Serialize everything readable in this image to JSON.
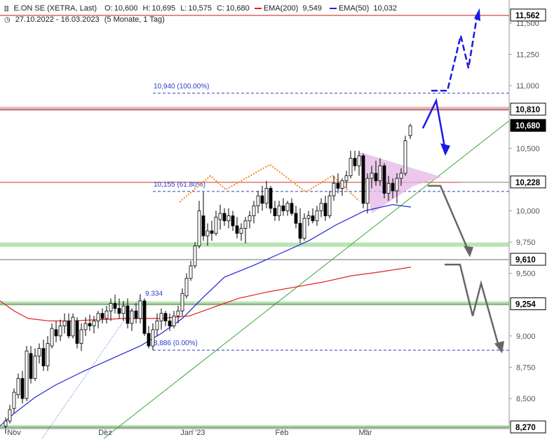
{
  "header": {
    "chart_icon": "bar-chart-icon",
    "symbol": "E.ON SE (XETRA, Last)",
    "open_label": "O:",
    "open": "10,600",
    "high_label": "H:",
    "high": "10,695",
    "low_label": "L:",
    "low": "10,575",
    "close_label": "C:",
    "close": "10,680",
    "ema200_label": "EMA(200)",
    "ema200_value": "9,549",
    "ema50_label": "EMA(50)",
    "ema50_value": "10,032",
    "clock_icon": "clock-icon",
    "date_range": "27.10.2022 - 16.03.2023",
    "period": "(5 Monate, 1 Tag)"
  },
  "colors": {
    "ema200": "#e0201c",
    "ema50": "#2323d6",
    "trendline": "#3aa63a",
    "support_band": "#b9e4b3",
    "resistance_band": "#f5b8b8",
    "fib_text": "#2a3cc9",
    "orange": "#f08a1c",
    "triangle_fill": "#e3b7e3",
    "arrow_blue": "#1a1ae6",
    "arrow_gray": "#666666"
  },
  "chart_data": {
    "type": "candlestick",
    "ylim": [
      8.2,
      11.74
    ],
    "x_tick_labels": [
      "Nov",
      "Dez",
      "Jan '23",
      "Feb",
      "Mär"
    ],
    "y_tick_labels": [
      "11,500",
      "11,250",
      "11,000",
      "10,500",
      "10,000",
      "9,750",
      "9,500",
      "9,000",
      "8,750",
      "8,500"
    ],
    "y_ticks": [
      11.5,
      11.25,
      11.0,
      10.5,
      10.0,
      9.75,
      9.5,
      9.0,
      8.75,
      8.5
    ],
    "price_tags": [
      {
        "value": 11.562,
        "label": "11,562",
        "style": "outline"
      },
      {
        "value": 10.81,
        "label": "10,810",
        "style": "outline"
      },
      {
        "value": 10.68,
        "label": "10,680",
        "style": "filled"
      },
      {
        "value": 10.228,
        "label": "10,228",
        "style": "outline"
      },
      {
        "value": 9.61,
        "label": "9,610",
        "style": "outline"
      },
      {
        "value": 9.254,
        "label": "9,254",
        "style": "outline"
      },
      {
        "value": 8.27,
        "label": "8,270",
        "style": "outline"
      }
    ],
    "fib_levels": [
      {
        "value": 10.94,
        "label": "10,940 (100.00%)"
      },
      {
        "value": 10.155,
        "label": "10,155 (61.80%)"
      },
      {
        "value": 8.886,
        "label": "8,886 (0.00%)"
      }
    ],
    "annotations": [
      {
        "label": "9.334",
        "value": 9.334
      }
    ],
    "series": [
      {
        "name": "EMA(200)",
        "points": [
          [
            0,
            9.28
          ],
          [
            20,
            9.2
          ],
          [
            40,
            9.14
          ],
          [
            70,
            9.12
          ],
          [
            100,
            9.12
          ],
          [
            140,
            9.13
          ],
          [
            180,
            9.14
          ],
          [
            230,
            9.14
          ],
          [
            270,
            9.16
          ],
          [
            300,
            9.22
          ],
          [
            340,
            9.3
          ],
          [
            380,
            9.35
          ],
          [
            420,
            9.39
          ],
          [
            460,
            9.43
          ],
          [
            500,
            9.48
          ],
          [
            540,
            9.51
          ],
          [
            586,
            9.55
          ]
        ]
      },
      {
        "name": "EMA(50)",
        "points": [
          [
            0,
            8.28
          ],
          [
            20,
            8.38
          ],
          [
            50,
            8.51
          ],
          [
            80,
            8.61
          ],
          [
            120,
            8.72
          ],
          [
            160,
            8.82
          ],
          [
            200,
            8.92
          ],
          [
            230,
            9.02
          ],
          [
            260,
            9.14
          ],
          [
            290,
            9.31
          ],
          [
            320,
            9.47
          ],
          [
            360,
            9.56
          ],
          [
            400,
            9.66
          ],
          [
            440,
            9.76
          ],
          [
            480,
            9.89
          ],
          [
            520,
            10.0
          ],
          [
            560,
            10.05
          ],
          [
            586,
            10.03
          ]
        ]
      }
    ],
    "candles": [
      {
        "x": 8,
        "o": 8.28,
        "h": 8.35,
        "l": 8.22,
        "c": 8.32
      },
      {
        "x": 14,
        "o": 8.32,
        "h": 8.45,
        "l": 8.3,
        "c": 8.41
      },
      {
        "x": 20,
        "o": 8.42,
        "h": 8.58,
        "l": 8.38,
        "c": 8.55
      },
      {
        "x": 26,
        "o": 8.53,
        "h": 8.7,
        "l": 8.5,
        "c": 8.66
      },
      {
        "x": 32,
        "o": 8.66,
        "h": 8.72,
        "l": 8.46,
        "c": 8.5
      },
      {
        "x": 38,
        "o": 8.5,
        "h": 8.92,
        "l": 8.48,
        "c": 8.88
      },
      {
        "x": 44,
        "o": 8.86,
        "h": 8.92,
        "l": 8.62,
        "c": 8.66
      },
      {
        "x": 50,
        "o": 8.66,
        "h": 8.9,
        "l": 8.64,
        "c": 8.84
      },
      {
        "x": 56,
        "o": 8.84,
        "h": 8.94,
        "l": 8.78,
        "c": 8.9
      },
      {
        "x": 62,
        "o": 8.9,
        "h": 8.97,
        "l": 8.72,
        "c": 8.76
      },
      {
        "x": 68,
        "o": 8.76,
        "h": 9.0,
        "l": 8.72,
        "c": 8.94
      },
      {
        "x": 74,
        "o": 8.92,
        "h": 9.1,
        "l": 8.9,
        "c": 9.06
      },
      {
        "x": 80,
        "o": 9.05,
        "h": 9.12,
        "l": 8.95,
        "c": 9.0
      },
      {
        "x": 86,
        "o": 9.0,
        "h": 9.13,
        "l": 8.96,
        "c": 9.08
      },
      {
        "x": 92,
        "o": 9.08,
        "h": 9.18,
        "l": 9.02,
        "c": 9.12
      },
      {
        "x": 98,
        "o": 9.12,
        "h": 9.18,
        "l": 8.98,
        "c": 9.0
      },
      {
        "x": 104,
        "o": 9.0,
        "h": 9.18,
        "l": 8.98,
        "c": 9.15
      },
      {
        "x": 110,
        "o": 9.12,
        "h": 9.15,
        "l": 8.9,
        "c": 8.94
      },
      {
        "x": 116,
        "o": 8.94,
        "h": 9.1,
        "l": 8.88,
        "c": 9.05
      },
      {
        "x": 122,
        "o": 9.05,
        "h": 9.15,
        "l": 9.0,
        "c": 9.1
      },
      {
        "x": 128,
        "o": 9.1,
        "h": 9.17,
        "l": 9.04,
        "c": 9.08
      },
      {
        "x": 134,
        "o": 9.08,
        "h": 9.16,
        "l": 9.02,
        "c": 9.12
      },
      {
        "x": 140,
        "o": 9.12,
        "h": 9.2,
        "l": 9.06,
        "c": 9.18
      },
      {
        "x": 146,
        "o": 9.18,
        "h": 9.22,
        "l": 9.1,
        "c": 9.14
      },
      {
        "x": 152,
        "o": 9.14,
        "h": 9.24,
        "l": 9.1,
        "c": 9.2
      },
      {
        "x": 158,
        "o": 9.2,
        "h": 9.3,
        "l": 9.12,
        "c": 9.26
      },
      {
        "x": 164,
        "o": 9.26,
        "h": 9.33,
        "l": 9.18,
        "c": 9.22
      },
      {
        "x": 170,
        "o": 9.22,
        "h": 9.3,
        "l": 9.14,
        "c": 9.18
      },
      {
        "x": 176,
        "o": 9.18,
        "h": 9.28,
        "l": 9.12,
        "c": 9.24
      },
      {
        "x": 182,
        "o": 9.24,
        "h": 9.3,
        "l": 9.06,
        "c": 9.1
      },
      {
        "x": 188,
        "o": 9.1,
        "h": 9.22,
        "l": 9.04,
        "c": 9.2
      },
      {
        "x": 194,
        "o": 9.2,
        "h": 9.26,
        "l": 9.1,
        "c": 9.14
      },
      {
        "x": 200,
        "o": 9.14,
        "h": 9.334,
        "l": 9.1,
        "c": 9.28
      },
      {
        "x": 206,
        "o": 9.28,
        "h": 9.3,
        "l": 9.0,
        "c": 9.02
      },
      {
        "x": 212,
        "o": 9.02,
        "h": 9.08,
        "l": 8.9,
        "c": 8.92
      },
      {
        "x": 218,
        "o": 8.92,
        "h": 9.1,
        "l": 8.886,
        "c": 9.05
      },
      {
        "x": 224,
        "o": 9.05,
        "h": 9.18,
        "l": 9.0,
        "c": 9.12
      },
      {
        "x": 230,
        "o": 9.12,
        "h": 9.22,
        "l": 9.05,
        "c": 9.18
      },
      {
        "x": 236,
        "o": 9.18,
        "h": 9.2,
        "l": 9.08,
        "c": 9.12
      },
      {
        "x": 242,
        "o": 9.12,
        "h": 9.18,
        "l": 9.04,
        "c": 9.08
      },
      {
        "x": 248,
        "o": 9.08,
        "h": 9.2,
        "l": 9.06,
        "c": 9.16
      },
      {
        "x": 254,
        "o": 9.16,
        "h": 9.24,
        "l": 9.1,
        "c": 9.2
      },
      {
        "x": 260,
        "o": 9.2,
        "h": 9.38,
        "l": 9.16,
        "c": 9.34
      },
      {
        "x": 266,
        "o": 9.32,
        "h": 9.5,
        "l": 9.3,
        "c": 9.46
      },
      {
        "x": 272,
        "o": 9.46,
        "h": 9.6,
        "l": 9.44,
        "c": 9.56
      },
      {
        "x": 278,
        "o": 9.56,
        "h": 9.75,
        "l": 9.54,
        "c": 9.72
      },
      {
        "x": 284,
        "o": 9.72,
        "h": 10.08,
        "l": 9.7,
        "c": 10.0
      },
      {
        "x": 290,
        "o": 9.96,
        "h": 10.15,
        "l": 9.76,
        "c": 9.8
      },
      {
        "x": 296,
        "o": 9.8,
        "h": 9.9,
        "l": 9.72,
        "c": 9.84
      },
      {
        "x": 302,
        "o": 9.84,
        "h": 9.92,
        "l": 9.76,
        "c": 9.82
      },
      {
        "x": 308,
        "o": 9.82,
        "h": 10.0,
        "l": 9.8,
        "c": 9.95
      },
      {
        "x": 314,
        "o": 9.93,
        "h": 10.05,
        "l": 9.85,
        "c": 9.98
      },
      {
        "x": 320,
        "o": 9.98,
        "h": 10.02,
        "l": 9.88,
        "c": 9.92
      },
      {
        "x": 326,
        "o": 9.92,
        "h": 10.02,
        "l": 9.86,
        "c": 9.96
      },
      {
        "x": 332,
        "o": 9.96,
        "h": 10.0,
        "l": 9.84,
        "c": 9.88
      },
      {
        "x": 338,
        "o": 9.88,
        "h": 9.95,
        "l": 9.78,
        "c": 9.82
      },
      {
        "x": 344,
        "o": 9.82,
        "h": 9.9,
        "l": 9.76,
        "c": 9.86
      },
      {
        "x": 350,
        "o": 9.86,
        "h": 9.95,
        "l": 9.74,
        "c": 9.92
      },
      {
        "x": 356,
        "o": 9.92,
        "h": 10.0,
        "l": 9.86,
        "c": 9.96
      },
      {
        "x": 362,
        "o": 9.96,
        "h": 10.08,
        "l": 9.9,
        "c": 10.04
      },
      {
        "x": 368,
        "o": 10.04,
        "h": 10.16,
        "l": 9.98,
        "c": 10.12
      },
      {
        "x": 374,
        "o": 10.12,
        "h": 10.2,
        "l": 10.0,
        "c": 10.06
      },
      {
        "x": 380,
        "o": 10.06,
        "h": 10.24,
        "l": 10.02,
        "c": 10.18
      },
      {
        "x": 386,
        "o": 10.18,
        "h": 10.2,
        "l": 9.98,
        "c": 10.02
      },
      {
        "x": 392,
        "o": 10.02,
        "h": 10.08,
        "l": 9.92,
        "c": 9.96
      },
      {
        "x": 398,
        "o": 9.96,
        "h": 10.08,
        "l": 9.92,
        "c": 10.04
      },
      {
        "x": 404,
        "o": 10.04,
        "h": 10.1,
        "l": 9.96,
        "c": 10.0
      },
      {
        "x": 410,
        "o": 10.0,
        "h": 10.08,
        "l": 9.96,
        "c": 10.06
      },
      {
        "x": 416,
        "o": 10.06,
        "h": 10.1,
        "l": 9.96,
        "c": 9.98
      },
      {
        "x": 422,
        "o": 9.98,
        "h": 10.04,
        "l": 9.86,
        "c": 9.9
      },
      {
        "x": 428,
        "o": 9.9,
        "h": 10.02,
        "l": 9.74,
        "c": 9.78
      },
      {
        "x": 434,
        "o": 9.78,
        "h": 9.98,
        "l": 9.76,
        "c": 9.94
      },
      {
        "x": 440,
        "o": 9.94,
        "h": 10.0,
        "l": 9.88,
        "c": 9.96
      },
      {
        "x": 446,
        "o": 9.96,
        "h": 10.02,
        "l": 9.9,
        "c": 9.92
      },
      {
        "x": 452,
        "o": 9.92,
        "h": 10.04,
        "l": 9.88,
        "c": 10.0
      },
      {
        "x": 458,
        "o": 10.0,
        "h": 10.1,
        "l": 9.95,
        "c": 10.06
      },
      {
        "x": 464,
        "o": 10.06,
        "h": 10.12,
        "l": 9.92,
        "c": 9.96
      },
      {
        "x": 470,
        "o": 9.96,
        "h": 10.16,
        "l": 9.94,
        "c": 10.12
      },
      {
        "x": 476,
        "o": 10.12,
        "h": 10.28,
        "l": 10.08,
        "c": 10.22
      },
      {
        "x": 482,
        "o": 10.22,
        "h": 10.3,
        "l": 10.14,
        "c": 10.18
      },
      {
        "x": 488,
        "o": 10.18,
        "h": 10.26,
        "l": 10.12,
        "c": 10.24
      },
      {
        "x": 494,
        "o": 10.24,
        "h": 10.32,
        "l": 10.18,
        "c": 10.28
      },
      {
        "x": 500,
        "o": 10.28,
        "h": 10.48,
        "l": 10.26,
        "c": 10.42
      },
      {
        "x": 506,
        "o": 10.42,
        "h": 10.48,
        "l": 10.32,
        "c": 10.36
      },
      {
        "x": 512,
        "o": 10.36,
        "h": 10.48,
        "l": 10.28,
        "c": 10.44
      },
      {
        "x": 518,
        "o": 10.44,
        "h": 10.46,
        "l": 10.02,
        "c": 10.06
      },
      {
        "x": 524,
        "o": 10.06,
        "h": 10.3,
        "l": 9.98,
        "c": 10.26
      },
      {
        "x": 530,
        "o": 10.26,
        "h": 10.36,
        "l": 10.18,
        "c": 10.3
      },
      {
        "x": 536,
        "o": 10.3,
        "h": 10.4,
        "l": 10.2,
        "c": 10.24
      },
      {
        "x": 542,
        "o": 10.24,
        "h": 10.42,
        "l": 10.2,
        "c": 10.36
      },
      {
        "x": 548,
        "o": 10.36,
        "h": 10.38,
        "l": 10.1,
        "c": 10.14
      },
      {
        "x": 554,
        "o": 10.14,
        "h": 10.28,
        "l": 10.08,
        "c": 10.22
      },
      {
        "x": 560,
        "o": 10.22,
        "h": 10.26,
        "l": 10.1,
        "c": 10.16
      },
      {
        "x": 566,
        "o": 10.16,
        "h": 10.3,
        "l": 10.06,
        "c": 10.26
      },
      {
        "x": 572,
        "o": 10.26,
        "h": 10.34,
        "l": 10.2,
        "c": 10.3
      },
      {
        "x": 578,
        "o": 10.3,
        "h": 10.6,
        "l": 10.28,
        "c": 10.56
      },
      {
        "x": 585,
        "o": 10.6,
        "h": 10.695,
        "l": 10.575,
        "c": 10.68
      }
    ]
  }
}
